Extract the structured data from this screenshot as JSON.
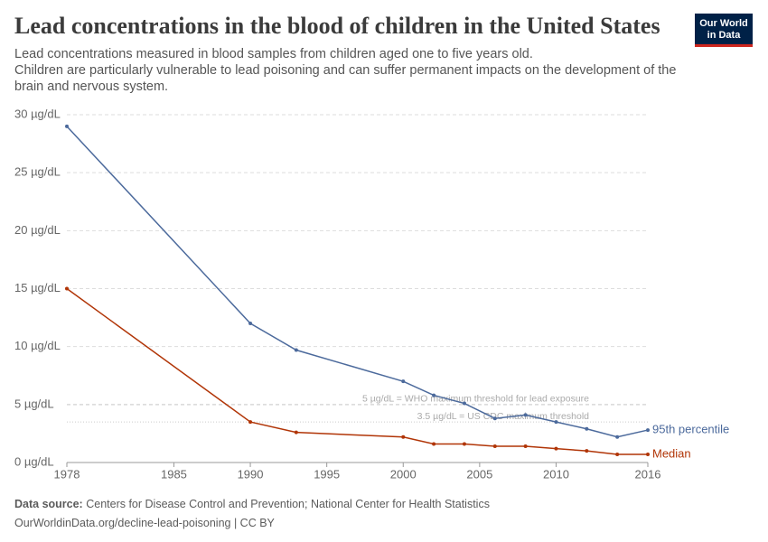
{
  "chart_data": {
    "type": "line",
    "title": "Lead concentrations in the blood of children in the United States",
    "subtitle": [
      "Lead concentrations measured in blood samples from children aged one to five years old.",
      "Children are particularly vulnerable to lead poisoning and can suffer permanent impacts on the development of the brain and nervous system."
    ],
    "logo": [
      "Our World",
      "in Data"
    ],
    "x": [
      1978,
      1990,
      1993,
      2000,
      2002,
      2004,
      2006,
      2008,
      2010,
      2012,
      2014,
      2016
    ],
    "series": [
      {
        "name": "95th percentile",
        "color": "#4c6a9c",
        "values": [
          29,
          12,
          9.7,
          7,
          5.8,
          5.1,
          3.8,
          4.1,
          3.5,
          2.9,
          2.2,
          2.8
        ]
      },
      {
        "name": "Median",
        "color": "#b13507",
        "values": [
          15,
          3.5,
          2.6,
          2.2,
          1.6,
          1.6,
          1.4,
          1.4,
          1.2,
          1.0,
          0.7,
          0.7
        ]
      }
    ],
    "xlim": [
      1978,
      2016
    ],
    "xticks": [
      1978,
      1985,
      1990,
      1995,
      2000,
      2005,
      2010,
      2016
    ],
    "ylim": [
      0,
      30
    ],
    "yticks": [
      {
        "value": 0,
        "label": "0 µg/dL"
      },
      {
        "value": 5,
        "label": "5 µg/dL"
      },
      {
        "value": 10,
        "label": "10 µg/dL"
      },
      {
        "value": 15,
        "label": "15 µg/dL"
      },
      {
        "value": 20,
        "label": "20 µg/dL"
      },
      {
        "value": 25,
        "label": "25 µg/dL"
      },
      {
        "value": 30,
        "label": "30 µg/dL"
      }
    ],
    "grid": true,
    "reference_lines": [
      {
        "value": 5,
        "label": "5 µg/dL = WHO maximum threshold for lead exposure"
      },
      {
        "value": 3.5,
        "label": "3.5 µg/dL = US CDC maximum threshold"
      }
    ],
    "source_label": "Data source:",
    "source": "Centers for Disease Control and Prevention; National Center for Health Statistics",
    "url": "OurWorldinData.org/decline-lead-poisoning | CC BY"
  }
}
